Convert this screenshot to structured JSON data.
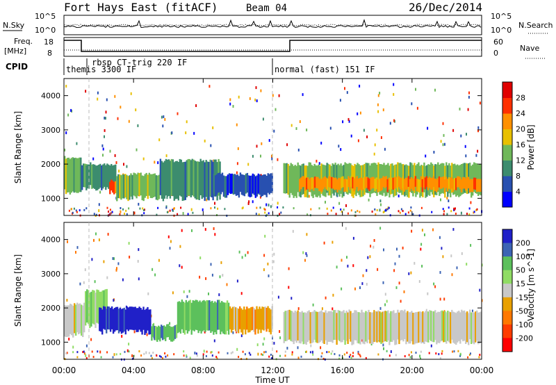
{
  "header": {
    "title": "Fort Hays East (fitACF)",
    "beam": "Beam 04",
    "date": "26/Dec/2014"
  },
  "noise_panel": {
    "left_label": "N.Sky",
    "right_label": "N.Search",
    "ticks_left": [
      "10^5",
      "10^0"
    ],
    "ticks_right": [
      "10^5",
      "10^0"
    ]
  },
  "freq_panel": {
    "left_label_1": "Freq.",
    "left_label_2": "[MHz]",
    "ticks_left": [
      "18",
      "8"
    ],
    "right_label": "Nave",
    "ticks_right": [
      "60",
      "0"
    ]
  },
  "cpid_panel": {
    "label": "CPID",
    "entries": [
      {
        "text": "themis 3300 IF",
        "hour": 0.05
      },
      {
        "text": "rbsp CT-trig 220 IF",
        "hour": 1.3
      },
      {
        "text": "normal (fast) 151 IF",
        "hour": 12.0
      }
    ]
  },
  "xaxis": {
    "label": "Time UT",
    "ticks": [
      "00:00",
      "04:00",
      "08:00",
      "12:00",
      "16:00",
      "20:00",
      "00:00"
    ]
  },
  "colors": {
    "power": [
      "#0000ff",
      "#2850b0",
      "#3c8c6e",
      "#6fb85a",
      "#e8c000",
      "#ff9000",
      "#ff3000",
      "#e00000"
    ],
    "velocity": [
      "#2020c8",
      "#3c64b4",
      "#5cc05c",
      "#90dc64",
      "#c8c8c8",
      "#e8a000",
      "#ff7800",
      "#ff3c00",
      "#ff0000"
    ]
  },
  "chart_data": [
    {
      "type": "heatmap",
      "name": "power",
      "ylabel": "Slant Range [km]",
      "yticks": [
        "1000",
        "2000",
        "3000",
        "4000"
      ],
      "ylim": [
        500,
        4500
      ],
      "xlim": [
        0,
        24
      ],
      "colorbar": {
        "label": "Power [dB]",
        "ticks": [
          "4",
          "8",
          "12",
          "16",
          "20",
          "24",
          "28"
        ]
      },
      "bands": [
        {
          "x0": 0.0,
          "x1": 1.0,
          "y0": 1200,
          "y1": 2200,
          "level": 3
        },
        {
          "x0": 1.0,
          "x1": 3.0,
          "y0": 1300,
          "y1": 2000,
          "level": 2
        },
        {
          "x0": 2.6,
          "x1": 5.2,
          "y0": 1150,
          "y1": 1500,
          "level": 6
        },
        {
          "x0": 3.0,
          "x1": 5.5,
          "y0": 1000,
          "y1": 1700,
          "level": 3
        },
        {
          "x0": 6.0,
          "x1": 8.5,
          "y0": 1150,
          "y1": 1450,
          "level": 6
        },
        {
          "x0": 5.5,
          "x1": 9.0,
          "y0": 1000,
          "y1": 2100,
          "level": 2
        },
        {
          "x0": 8.5,
          "x1": 12.0,
          "y0": 1100,
          "y1": 1700,
          "level": 1
        },
        {
          "x0": 12.6,
          "x1": 24.0,
          "y0": 1100,
          "y1": 2000,
          "level": 3
        },
        {
          "x0": 13.5,
          "x1": 24.0,
          "y0": 1250,
          "y1": 1600,
          "level": 5
        }
      ]
    },
    {
      "type": "heatmap",
      "name": "velocity",
      "ylabel": "Slant Range [km]",
      "yticks": [
        "1000",
        "2000",
        "3000",
        "4000"
      ],
      "ylim": [
        500,
        4500
      ],
      "xlim": [
        0,
        24
      ],
      "colorbar": {
        "label": "Velocity [m s^-1]",
        "ticks": [
          "200",
          "100",
          "50",
          "15",
          "-15",
          "-50",
          "-100",
          "-200"
        ]
      },
      "bands": [
        {
          "x0": 0.0,
          "x1": 1.2,
          "y0": 1200,
          "y1": 2100,
          "level": 4
        },
        {
          "x0": 1.2,
          "x1": 2.5,
          "y0": 1500,
          "y1": 2500,
          "level": 3
        },
        {
          "x0": 2.0,
          "x1": 5.0,
          "y0": 1300,
          "y1": 2000,
          "level": 0
        },
        {
          "x0": 5.0,
          "x1": 6.5,
          "y0": 1100,
          "y1": 1500,
          "level": 2
        },
        {
          "x0": 6.5,
          "x1": 9.5,
          "y0": 1300,
          "y1": 2200,
          "level": 2
        },
        {
          "x0": 9.5,
          "x1": 12.0,
          "y0": 1300,
          "y1": 2000,
          "level": 5
        },
        {
          "x0": 12.6,
          "x1": 24.0,
          "y0": 1000,
          "y1": 1900,
          "level": 4
        }
      ]
    }
  ]
}
